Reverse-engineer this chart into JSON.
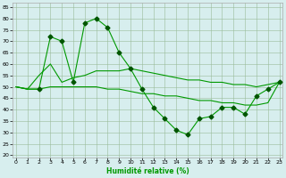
{
  "xlabel": "Humidité relative (%)",
  "bg_color": "#d7eeee",
  "grid_color": "#99bb99",
  "line_color": "#009900",
  "marker_color": "#005500",
  "xlim": [
    -0.3,
    23.3
  ],
  "ylim": [
    19,
    87
  ],
  "yticks": [
    20,
    25,
    30,
    35,
    40,
    45,
    50,
    55,
    60,
    65,
    70,
    75,
    80,
    85
  ],
  "xticks": [
    0,
    1,
    2,
    3,
    4,
    5,
    6,
    7,
    8,
    9,
    10,
    11,
    12,
    13,
    14,
    15,
    16,
    17,
    18,
    19,
    20,
    21,
    22,
    23
  ],
  "line_peaked_x": [
    0,
    1,
    2,
    3,
    4,
    5,
    6,
    7,
    8,
    9,
    10,
    11,
    12,
    13,
    14,
    15,
    16,
    17,
    18,
    19,
    20,
    21,
    22,
    23
  ],
  "line_peaked_y": [
    50,
    49,
    49,
    72,
    70,
    52,
    78,
    80,
    76,
    65,
    58,
    49,
    41,
    36,
    31,
    29,
    36,
    37,
    41,
    41,
    38,
    46,
    49,
    52
  ],
  "line_mid_x": [
    0,
    1,
    2,
    3,
    4,
    5,
    6,
    7,
    8,
    9,
    10,
    11,
    12,
    13,
    14,
    15,
    16,
    17,
    18,
    19,
    20,
    21,
    22,
    23
  ],
  "line_mid_y": [
    50,
    49,
    55,
    60,
    52,
    54,
    55,
    57,
    57,
    57,
    58,
    57,
    56,
    55,
    54,
    53,
    53,
    52,
    52,
    51,
    51,
    50,
    51,
    52
  ],
  "line_flat_x": [
    0,
    1,
    2,
    3,
    4,
    5,
    6,
    7,
    8,
    9,
    10,
    11,
    12,
    13,
    14,
    15,
    16,
    17,
    18,
    19,
    20,
    21,
    22,
    23
  ],
  "line_flat_y": [
    50,
    49,
    49,
    50,
    50,
    50,
    50,
    50,
    49,
    49,
    48,
    47,
    47,
    46,
    46,
    45,
    44,
    44,
    43,
    43,
    42,
    42,
    43,
    52
  ],
  "marker_x": [
    2,
    3,
    4,
    5,
    6,
    7,
    8,
    9,
    10,
    11,
    12,
    13,
    14,
    15,
    16,
    17,
    18,
    19,
    20,
    21,
    22,
    23
  ],
  "marker_y": [
    49,
    72,
    70,
    52,
    78,
    80,
    76,
    65,
    58,
    49,
    41,
    36,
    31,
    29,
    36,
    37,
    41,
    41,
    38,
    46,
    49,
    52
  ]
}
